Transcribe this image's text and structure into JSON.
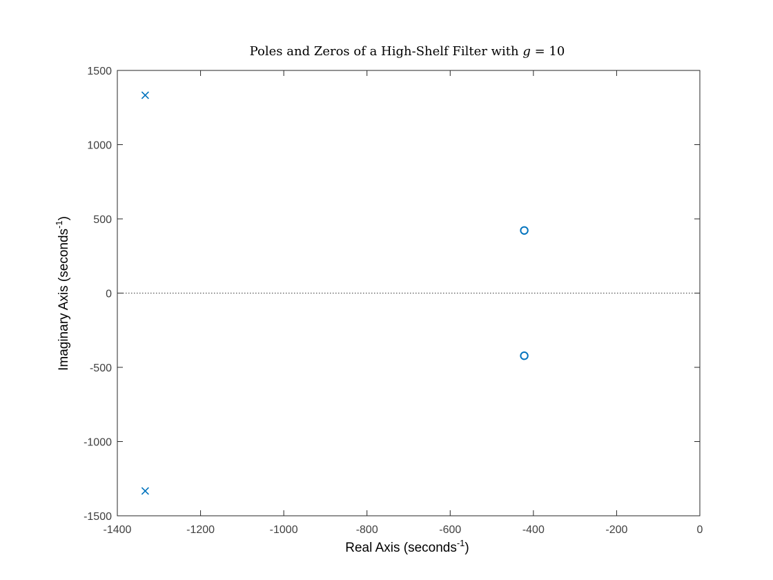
{
  "chart_data": {
    "type": "scatter",
    "title": {
      "prefix": "Poles and Zeros of a High-Shelf Filter with ",
      "variable": "g",
      "suffix": " = 10"
    },
    "xlabel": {
      "text": "Real Axis (seconds",
      "superscript": "-1",
      "close": ")"
    },
    "ylabel": {
      "text": "Imaginary Axis (seconds",
      "superscript": "-1",
      "close": ")"
    },
    "xlim": [
      -1400,
      0
    ],
    "ylim": [
      -1500,
      1500
    ],
    "xticks": [
      -1400,
      -1200,
      -1000,
      -800,
      -600,
      -400,
      -200,
      0
    ],
    "yticks": [
      -1500,
      -1000,
      -500,
      0,
      500,
      1000,
      1500
    ],
    "xtick_labels": [
      "-1400",
      "-1200",
      "-1000",
      "-800",
      "-600",
      "-400",
      "-200",
      "0"
    ],
    "ytick_labels": [
      "-1500",
      "-1000",
      "-500",
      "0",
      "500",
      "1000",
      "1500"
    ],
    "grid": false,
    "zero_line": true,
    "series": [
      {
        "kind": "poles",
        "marker": "x",
        "color": "#0072BD",
        "points": [
          {
            "x": -1333,
            "y": 1333
          },
          {
            "x": -1333,
            "y": -1333
          }
        ]
      },
      {
        "kind": "zeros",
        "marker": "o",
        "color": "#0072BD",
        "points": [
          {
            "x": -422,
            "y": 422
          },
          {
            "x": -422,
            "y": -422
          }
        ]
      }
    ],
    "colors": {
      "axis": "#262626",
      "tick_text": "#404040",
      "label_text": "#000000",
      "zero_line": "#333333"
    }
  }
}
